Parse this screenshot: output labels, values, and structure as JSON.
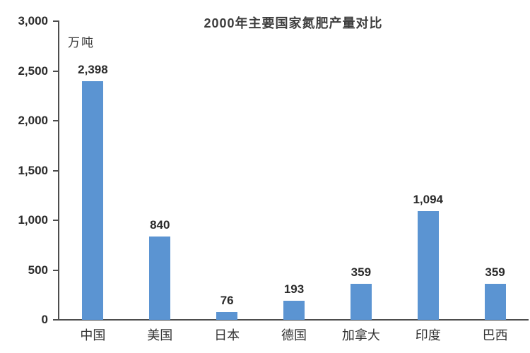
{
  "chart_data": {
    "type": "bar",
    "title": "2000年主要国家氮肥产量对比",
    "unit_label": "万吨",
    "categories": [
      "中国",
      "美国",
      "日本",
      "德国",
      "加拿大",
      "印度",
      "巴西"
    ],
    "values": [
      2398,
      840,
      76,
      193,
      359,
      1094,
      359
    ],
    "value_labels": [
      "2,398",
      "840",
      "76",
      "193",
      "359",
      "1,094",
      "359"
    ],
    "y_ticks": [
      "3,000",
      "2,500",
      "2,000",
      "1,500",
      "1,000",
      "500",
      "0"
    ],
    "ylim": [
      0,
      3000
    ],
    "grid": false,
    "legend": "none",
    "bar_color": "#5b94d2",
    "axis_color": "#4d4d4d",
    "text_color": "#2b2b2b",
    "background_color": "#ffffff"
  }
}
